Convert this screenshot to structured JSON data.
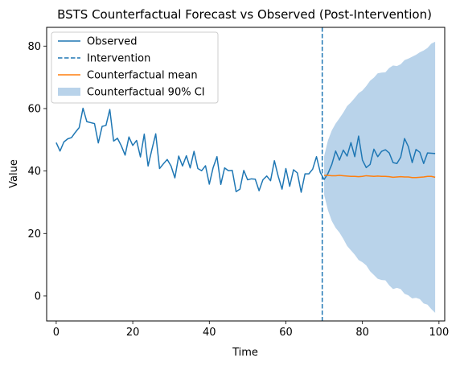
{
  "chart_data": {
    "type": "line",
    "title": "BSTS Counterfactual Forecast vs Observed (Post-Intervention)",
    "xlabel": "Time",
    "ylabel": "Value",
    "xlim": [
      -2.5,
      101.5
    ],
    "ylim": [
      -8,
      86
    ],
    "xticks": [
      0,
      20,
      40,
      60,
      80,
      100
    ],
    "yticks": [
      0,
      20,
      40,
      60,
      80
    ],
    "grid": false,
    "legend_position": "top-left",
    "colors": {
      "observed": "#1f77b4",
      "intervention": "#1f77b4",
      "counterfactual": "#ff7f0e",
      "ci": "#b9d3ea"
    },
    "intervention_x": 69.5,
    "observed": {
      "name": "Observed",
      "x": [
        0,
        1,
        2,
        3,
        4,
        5,
        6,
        7,
        8,
        9,
        10,
        11,
        12,
        13,
        14,
        15,
        16,
        17,
        18,
        19,
        20,
        21,
        22,
        23,
        24,
        25,
        26,
        27,
        28,
        29,
        30,
        31,
        32,
        33,
        34,
        35,
        36,
        37,
        38,
        39,
        40,
        41,
        42,
        43,
        44,
        45,
        46,
        47,
        48,
        49,
        50,
        51,
        52,
        53,
        54,
        55,
        56,
        57,
        58,
        59,
        60,
        61,
        62,
        63,
        64,
        65,
        66,
        67,
        68,
        69,
        70,
        71,
        72,
        73,
        74,
        75,
        76,
        77,
        78,
        79,
        80,
        81,
        82,
        83,
        84,
        85,
        86,
        87,
        88,
        89,
        90,
        91,
        92,
        93,
        94,
        95,
        96,
        97,
        98,
        99
      ],
      "y": [
        49.1,
        46.4,
        49.3,
        50.3,
        50.7,
        52.4,
        53.9,
        60.1,
        55.8,
        55.5,
        55.2,
        49.0,
        54.3,
        54.6,
        59.7,
        49.6,
        50.5,
        48.1,
        45.1,
        50.9,
        48.2,
        49.8,
        44.5,
        51.8,
        41.6,
        46.9,
        51.9,
        40.8,
        42.3,
        43.7,
        41.6,
        37.8,
        44.8,
        41.6,
        44.9,
        41.0,
        46.3,
        40.8,
        40.1,
        41.7,
        35.8,
        41.1,
        44.6,
        35.7,
        41.0,
        40.1,
        40.2,
        33.4,
        34.2,
        40.2,
        37.2,
        37.5,
        37.4,
        33.7,
        37.2,
        38.4,
        36.9,
        43.3,
        38.3,
        34.2,
        40.8,
        35.1,
        40.4,
        39.4,
        33.2,
        39.1,
        39.1,
        40.6,
        44.6,
        39.5,
        37.3,
        39.2,
        42.1,
        46.4,
        43.5,
        46.7,
        44.8,
        49.1,
        44.6,
        51.2,
        43.5,
        41.1,
        42.1,
        47.0,
        44.6,
        46.3,
        46.8,
        45.8,
        42.7,
        42.4,
        44.4,
        50.4,
        47.8,
        42.7,
        46.9,
        46.0,
        42.4,
        45.8,
        45.7,
        45.6
      ]
    },
    "counterfactual_mean": {
      "name": "Counterfactual mean",
      "x": [
        70,
        71,
        72,
        73,
        74,
        75,
        76,
        77,
        78,
        79,
        80,
        81,
        82,
        83,
        84,
        85,
        86,
        87,
        88,
        89,
        90,
        91,
        92,
        93,
        94,
        95,
        96,
        97,
        98,
        99
      ],
      "y": [
        38.6,
        38.6,
        38.5,
        38.5,
        38.6,
        38.5,
        38.4,
        38.3,
        38.3,
        38.2,
        38.3,
        38.5,
        38.4,
        38.3,
        38.4,
        38.3,
        38.3,
        38.2,
        38.0,
        38.1,
        38.2,
        38.1,
        38.1,
        37.9,
        37.9,
        38.0,
        38.1,
        38.3,
        38.3,
        38.0
      ]
    },
    "ci": {
      "name": "Counterfactual 90% CI",
      "x": [
        70,
        71,
        72,
        73,
        74,
        75,
        76,
        77,
        78,
        79,
        80,
        81,
        82,
        83,
        84,
        85,
        86,
        87,
        88,
        89,
        90,
        91,
        92,
        93,
        94,
        95,
        96,
        97,
        98,
        99
      ],
      "upper": [
        44.8,
        49.8,
        53.0,
        55.2,
        56.9,
        58.7,
        60.8,
        62.0,
        63.4,
        64.9,
        65.8,
        67.2,
        68.9,
        69.9,
        71.3,
        71.5,
        71.6,
        73.0,
        73.8,
        73.6,
        74.2,
        75.5,
        76.0,
        76.6,
        77.2,
        78.0,
        78.6,
        79.4,
        80.8,
        81.4
      ],
      "lower": [
        32.4,
        27.4,
        24.0,
        21.8,
        20.3,
        18.3,
        16.0,
        14.6,
        13.2,
        11.5,
        10.8,
        9.8,
        7.9,
        6.7,
        5.5,
        5.1,
        5.0,
        3.4,
        2.2,
        2.6,
        2.2,
        0.7,
        0.2,
        -0.8,
        -0.6,
        -1.0,
        -2.4,
        -2.8,
        -4.2,
        -5.4
      ]
    },
    "legend": [
      {
        "key": "observed",
        "label": "Observed",
        "style": "solid"
      },
      {
        "key": "intervention",
        "label": "Intervention",
        "style": "dashed"
      },
      {
        "key": "counterfactual",
        "label": "Counterfactual mean",
        "style": "solid"
      },
      {
        "key": "ci",
        "label": "Counterfactual 90% CI",
        "style": "patch"
      }
    ]
  }
}
